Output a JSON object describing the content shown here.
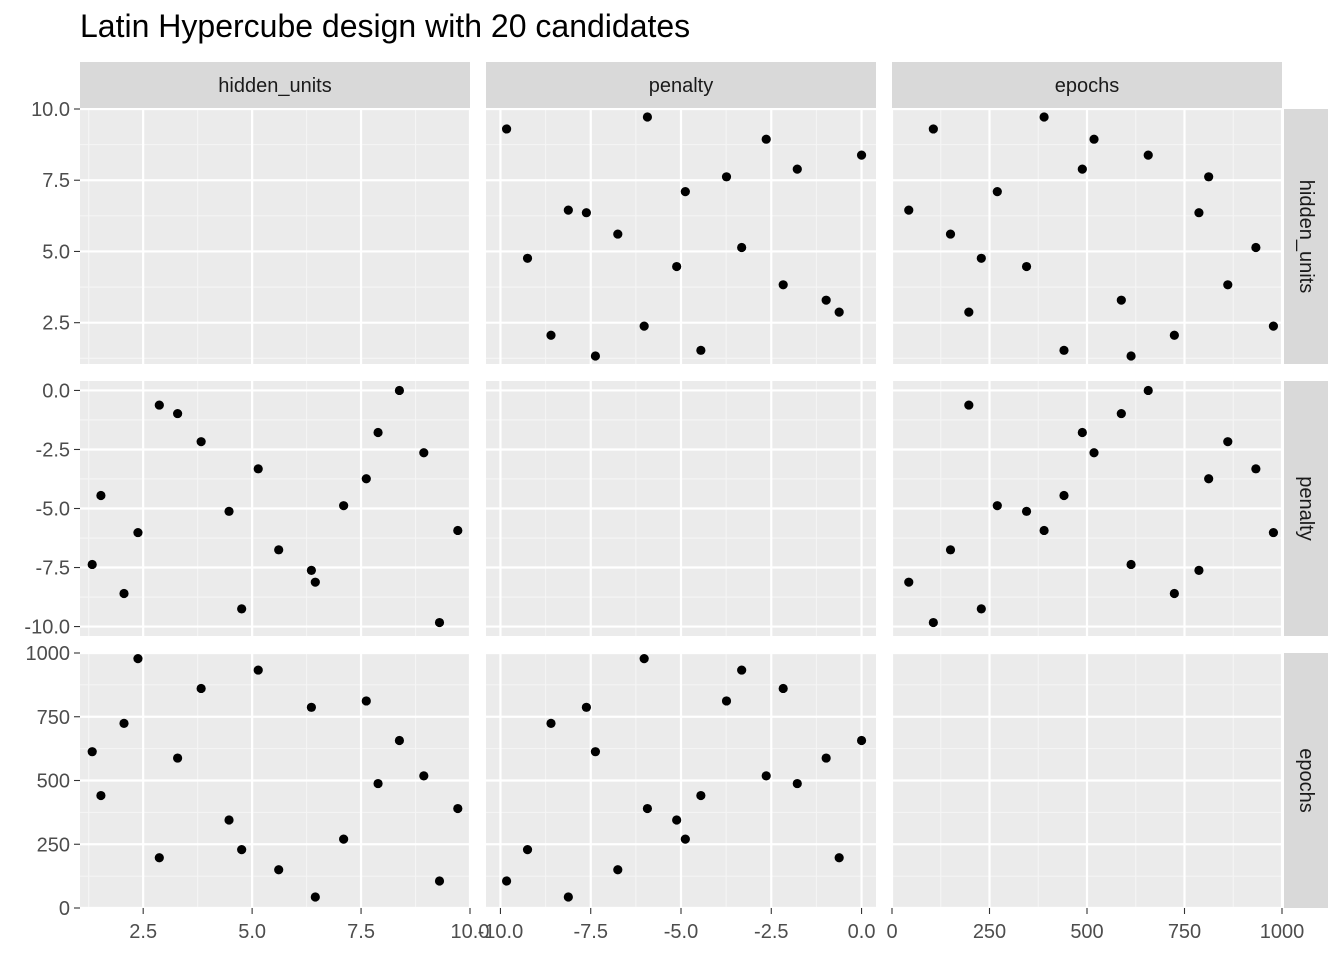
{
  "chart_data": {
    "type": "scatter",
    "title": "Latin Hypercube design with 20 candidates",
    "variables": [
      "hidden_units",
      "penalty",
      "epochs"
    ],
    "ranges": {
      "hidden_units": [
        1.05,
        10.0
      ],
      "penalty": [
        -10.4,
        0.4
      ],
      "epochs": [
        0,
        1000
      ]
    },
    "ticks": {
      "hidden_units": {
        "x_values": [
          2.5,
          5.0,
          7.5,
          10.0
        ],
        "x_labels": [
          "2.5",
          "5.0",
          "7.5",
          "10.0"
        ],
        "y_values": [
          2.5,
          5.0,
          7.5,
          10.0
        ],
        "y_labels": [
          "2.5",
          "5.0",
          "7.5",
          "10.0"
        ]
      },
      "penalty": {
        "x_values": [
          -10.0,
          -7.5,
          -5.0,
          -2.5,
          0.0
        ],
        "x_labels": [
          "-10.0",
          "-7.5",
          "-5.0",
          "-2.5",
          "0.0"
        ],
        "y_values": [
          -10.0,
          -7.5,
          -5.0,
          -2.5,
          0.0
        ],
        "y_labels": [
          "-10.0",
          "-7.5",
          "-5.0",
          "-2.5",
          "0.0"
        ]
      },
      "epochs": {
        "x_values": [
          0,
          250,
          500,
          750,
          1000
        ],
        "x_labels": [
          "0",
          "250",
          "500",
          "750",
          "1000"
        ],
        "y_values": [
          0,
          250,
          500,
          750,
          1000
        ],
        "y_labels": [
          "0",
          "250",
          "500",
          "750",
          "1000"
        ]
      }
    },
    "grid": true,
    "points": [
      {
        "hidden_units": 1.33,
        "penalty": -7.37,
        "epochs": 613
      },
      {
        "hidden_units": 1.53,
        "penalty": -4.45,
        "epochs": 441
      },
      {
        "hidden_units": 2.06,
        "penalty": -8.6,
        "epochs": 724
      },
      {
        "hidden_units": 2.38,
        "penalty": -6.02,
        "epochs": 978
      },
      {
        "hidden_units": 2.87,
        "penalty": -0.62,
        "epochs": 197
      },
      {
        "hidden_units": 3.29,
        "penalty": -0.98,
        "epochs": 588
      },
      {
        "hidden_units": 3.83,
        "penalty": -2.17,
        "epochs": 861
      },
      {
        "hidden_units": 4.47,
        "penalty": -5.12,
        "epochs": 345
      },
      {
        "hidden_units": 4.76,
        "penalty": -9.25,
        "epochs": 229
      },
      {
        "hidden_units": 5.14,
        "penalty": -3.32,
        "epochs": 933
      },
      {
        "hidden_units": 5.61,
        "penalty": -6.75,
        "epochs": 150
      },
      {
        "hidden_units": 6.36,
        "penalty": -7.62,
        "epochs": 787
      },
      {
        "hidden_units": 6.45,
        "penalty": -8.12,
        "epochs": 43
      },
      {
        "hidden_units": 7.1,
        "penalty": -4.88,
        "epochs": 270
      },
      {
        "hidden_units": 7.62,
        "penalty": -3.74,
        "epochs": 812
      },
      {
        "hidden_units": 7.89,
        "penalty": -1.78,
        "epochs": 488
      },
      {
        "hidden_units": 8.38,
        "penalty": 0.0,
        "epochs": 657
      },
      {
        "hidden_units": 8.94,
        "penalty": -2.64,
        "epochs": 518
      },
      {
        "hidden_units": 9.3,
        "penalty": -9.83,
        "epochs": 106
      },
      {
        "hidden_units": 9.72,
        "penalty": -5.93,
        "epochs": 390
      }
    ]
  }
}
